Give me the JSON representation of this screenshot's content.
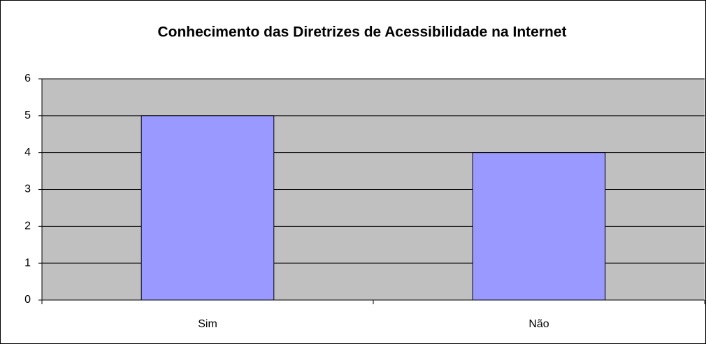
{
  "chart_data": {
    "type": "bar",
    "title": "Conhecimento das Diretrizes de Acessibilidade na Internet",
    "categories": [
      "Sim",
      "Não"
    ],
    "values": [
      5,
      4
    ],
    "color": "#9999ff",
    "ylim": [
      0,
      6
    ],
    "yticks": [
      0,
      1,
      2,
      3,
      4,
      5,
      6
    ],
    "grid": true
  }
}
